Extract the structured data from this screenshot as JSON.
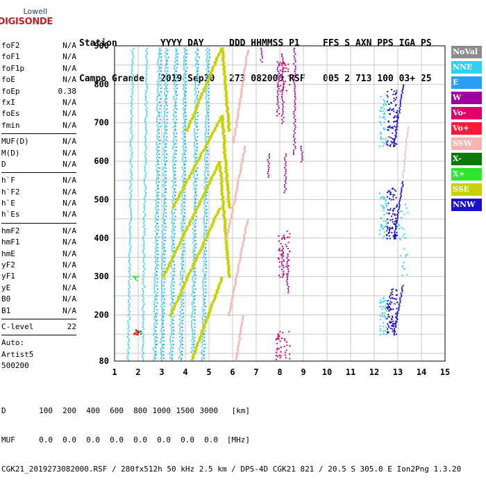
{
  "logo": {
    "top": "Lowell",
    "main": "DIGISONDE"
  },
  "header": {
    "labels": [
      "Station",
      "YYYY DAY",
      "DDD HHMMSS P1",
      "FFS S AXN PPS IGA PS"
    ],
    "values": [
      "Campo Grande",
      "2019 Sep30",
      "273 082000 RSF",
      "005 2 713 100 03+ 25"
    ]
  },
  "params": [
    {
      "name": "foF2",
      "value": "N/A"
    },
    {
      "name": "foF1",
      "value": "N/A"
    },
    {
      "name": "foF1p",
      "value": "N/A"
    },
    {
      "name": "foE",
      "value": "N/A"
    },
    {
      "name": "foEp",
      "value": "0.38"
    },
    {
      "name": "fxI",
      "value": "N/A"
    },
    {
      "name": "foEs",
      "value": "N/A"
    },
    {
      "name": "fmin",
      "value": "N/A"
    },
    {
      "sep": true
    },
    {
      "name": "MUF(D)",
      "value": "N/A"
    },
    {
      "name": "M(D)",
      "value": "N/A"
    },
    {
      "name": "D",
      "value": "N/A"
    },
    {
      "sep": true
    },
    {
      "name": "h`F",
      "value": "N/A"
    },
    {
      "name": "h`F2",
      "value": "N/A"
    },
    {
      "name": "h`E",
      "value": "N/A"
    },
    {
      "name": "h`Es",
      "value": "N/A"
    },
    {
      "sep": true
    },
    {
      "name": "hmF2",
      "value": "N/A"
    },
    {
      "name": "hmF1",
      "value": "N/A"
    },
    {
      "name": "hmE",
      "value": "N/A"
    },
    {
      "name": "yF2",
      "value": "N/A"
    },
    {
      "name": "yF1",
      "value": "N/A"
    },
    {
      "name": "yE",
      "value": "N/A"
    },
    {
      "name": "B0",
      "value": "N/A"
    },
    {
      "name": "B1",
      "value": "N/A"
    },
    {
      "sep": true
    },
    {
      "name": "C-level",
      "value": "22"
    },
    {
      "sep": true
    }
  ],
  "auto": [
    "Auto:",
    "Artist5",
    "500200"
  ],
  "legend": [
    {
      "label": "NoVal",
      "color": "#8c8c8c"
    },
    {
      "label": "NNE",
      "color": "#2ad4f0"
    },
    {
      "label": "E",
      "color": "#2a9df4"
    },
    {
      "label": "W",
      "color": "#a000a0"
    },
    {
      "label": "Vo-",
      "color": "#e0006a"
    },
    {
      "label": "Vo+",
      "color": "#ff1a3a"
    },
    {
      "label": "SSW",
      "color": "#f4b4b0"
    },
    {
      "label": "X-",
      "color": "#0a7a0a"
    },
    {
      "label": "X+",
      "color": "#2ee62e"
    },
    {
      "label": "SSE",
      "color": "#c8d200"
    },
    {
      "label": "NNW",
      "color": "#1a10c8"
    }
  ],
  "plot": {
    "x_ticks": [
      "1",
      "2",
      "3",
      "4",
      "5",
      "6",
      "7",
      "8",
      "9",
      "10",
      "11",
      "12",
      "13",
      "14",
      "15"
    ],
    "y_ticks": [
      "80",
      "200",
      "300",
      "400",
      "500",
      "600",
      "700",
      "800",
      "900"
    ],
    "xlim": [
      1,
      15
    ],
    "ylim": [
      80,
      900
    ]
  },
  "footer": {
    "d_label": "D",
    "d_values": [
      "100",
      "200",
      "400",
      "600",
      "800",
      "1000",
      "1500",
      "3000",
      "[km]"
    ],
    "muf_label": "MUF",
    "muf_values": [
      "0.0",
      "0.0",
      "0.0",
      "0.0",
      "0.0",
      "0.0",
      "0.0",
      "0.0",
      "[MHz]"
    ],
    "info": "CGK21_2019273082000.RSF / 280fx512h 50 kHz 2.5 km / DPS-4D CGK21 821 / 20.5 S 305.0 E Ion2Png 1.3.20"
  }
}
